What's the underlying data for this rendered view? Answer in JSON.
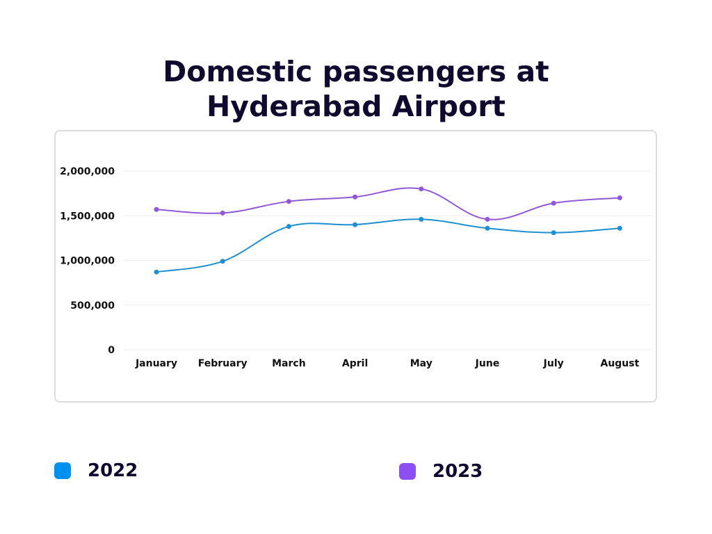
{
  "title_lines": [
    "Domestic passengers at",
    "Hyderabad Airport"
  ],
  "chart_data": {
    "type": "line",
    "title": "Domestic passengers at Hyderabad Airport",
    "xlabel": "",
    "ylabel": "",
    "categories": [
      "January",
      "February",
      "March",
      "April",
      "May",
      "June",
      "July",
      "August"
    ],
    "series": [
      {
        "name": "2022",
        "color": "#1e8fd0",
        "values": [
          870000,
          990000,
          1380000,
          1400000,
          1460000,
          1360000,
          1310000,
          1360000
        ]
      },
      {
        "name": "2023",
        "color": "#9058d8",
        "values": [
          1570000,
          1530000,
          1660000,
          1710000,
          1800000,
          1460000,
          1640000,
          1700000
        ]
      }
    ],
    "ylim": [
      0,
      2000000
    ],
    "yticks": [
      0,
      500000,
      1000000,
      1500000,
      2000000
    ],
    "ytick_labels": [
      "0",
      "500,000",
      "1,000,000",
      "1,500,000",
      "2,000,000"
    ],
    "grid": true,
    "legend_position": "bottom",
    "curve": "smooth"
  },
  "legend": [
    {
      "label": "2022",
      "color": "#0090f0"
    },
    {
      "label": "2023",
      "color": "#8e4ff2"
    }
  ]
}
